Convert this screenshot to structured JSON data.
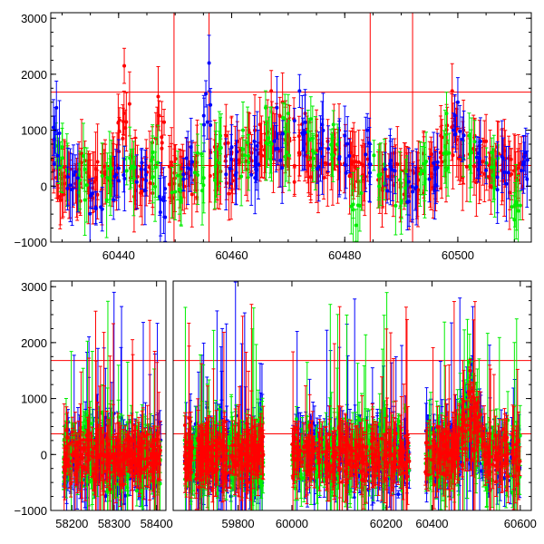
{
  "colors": {
    "red": "#ff0000",
    "green": "#00ee00",
    "blue": "#0000ff",
    "axis": "#000000"
  },
  "chart_data": [
    {
      "type": "scatter",
      "title": "",
      "xlabel": "",
      "ylabel": "",
      "xlim": [
        60428,
        60513
      ],
      "ylim": [
        -1000,
        3100
      ],
      "xticks": [
        60440,
        60460,
        60480,
        60500
      ],
      "xtick_labels": [
        "60440",
        "60460",
        "60480",
        "60500"
      ],
      "yticks": [
        -1000,
        0,
        1000,
        2000,
        3000
      ],
      "ytick_labels": [
        "−1000",
        "0",
        "1000",
        "2000",
        "3000"
      ],
      "error_bars": true,
      "hlines": [
        370,
        1680
      ],
      "vlines": [
        60449.8,
        60456.0,
        60484.5,
        60492.0
      ],
      "series": [
        {
          "color_key": "red",
          "x": [
            60429,
            60431,
            60433,
            60435,
            60437,
            60439,
            60441,
            60443,
            60445,
            60447,
            60449,
            60451,
            60453,
            60457,
            60459,
            60461,
            60463,
            60465,
            60467,
            60469,
            60471,
            60473,
            60475,
            60477,
            60479,
            60481,
            60483,
            60487,
            60489,
            60491,
            60493,
            60495,
            60497,
            60499,
            60501,
            60503,
            60505,
            60507,
            60509,
            60511
          ],
          "y": [
            150,
            200,
            300,
            100,
            250,
            400,
            2150,
            300,
            250,
            1600,
            350,
            200,
            400,
            700,
            900,
            800,
            1000,
            1100,
            1700,
            1500,
            1200,
            1300,
            900,
            800,
            1000,
            600,
            400,
            300,
            400,
            200,
            250,
            500,
            900,
            1700,
            1000,
            900,
            800,
            700,
            500,
            400
          ]
        },
        {
          "color_key": "green",
          "x": [
            60430,
            60434,
            60438,
            60442,
            60446,
            60450,
            60454,
            60458,
            60462,
            60466,
            60470,
            60474,
            60478,
            60482,
            60486,
            60490,
            60494,
            60498,
            60502,
            60506,
            60510
          ],
          "y": [
            700,
            300,
            150,
            500,
            600,
            -100,
            200,
            900,
            1000,
            1400,
            1300,
            1200,
            1100,
            -700,
            200,
            -300,
            400,
            1300,
            900,
            600,
            -600
          ]
        },
        {
          "color_key": "blue",
          "x": [
            60429,
            60432,
            60436,
            60440,
            60444,
            60448,
            60452,
            60456,
            60460,
            60464,
            60468,
            60472,
            60476,
            60480,
            60484,
            60488,
            60492,
            60496,
            60500,
            60504,
            60508,
            60512
          ],
          "y": [
            1400,
            200,
            -400,
            100,
            300,
            -200,
            500,
            2200,
            700,
            800,
            1400,
            1700,
            1100,
            900,
            1000,
            400,
            -100,
            300,
            1500,
            800,
            500,
            600
          ]
        }
      ]
    },
    {
      "type": "scatter",
      "title": "",
      "xlabel": "",
      "ylabel": "",
      "segments": [
        [
          58150,
          58420
        ],
        [
          59610,
          59890
        ],
        [
          59950,
          60260
        ],
        [
          60360,
          60625
        ]
      ],
      "xticks": [
        58200,
        58300,
        58400,
        59800,
        60000,
        60200,
        60400,
        60600
      ],
      "xtick_labels": [
        "58200",
        "58300",
        "58400",
        "59800",
        "60000",
        "60200",
        "60400",
        "60600"
      ],
      "ylim": [
        -1000,
        3100
      ],
      "yticks": [
        -1000,
        0,
        1000,
        2000,
        3000
      ],
      "ytick_labels": [
        "−1000",
        "0",
        "1000",
        "2000",
        "3000"
      ],
      "error_bars": true,
      "hlines": [
        370,
        1680
      ],
      "data_ranges": [
        [
          58180,
          58410
        ],
        [
          59640,
          59875
        ],
        [
          60000,
          60250
        ],
        [
          60385,
          60600
        ]
      ],
      "scatter_center": 0,
      "scatter_spread": 450,
      "peak_x": 60485,
      "peak_y": 1500
    }
  ]
}
